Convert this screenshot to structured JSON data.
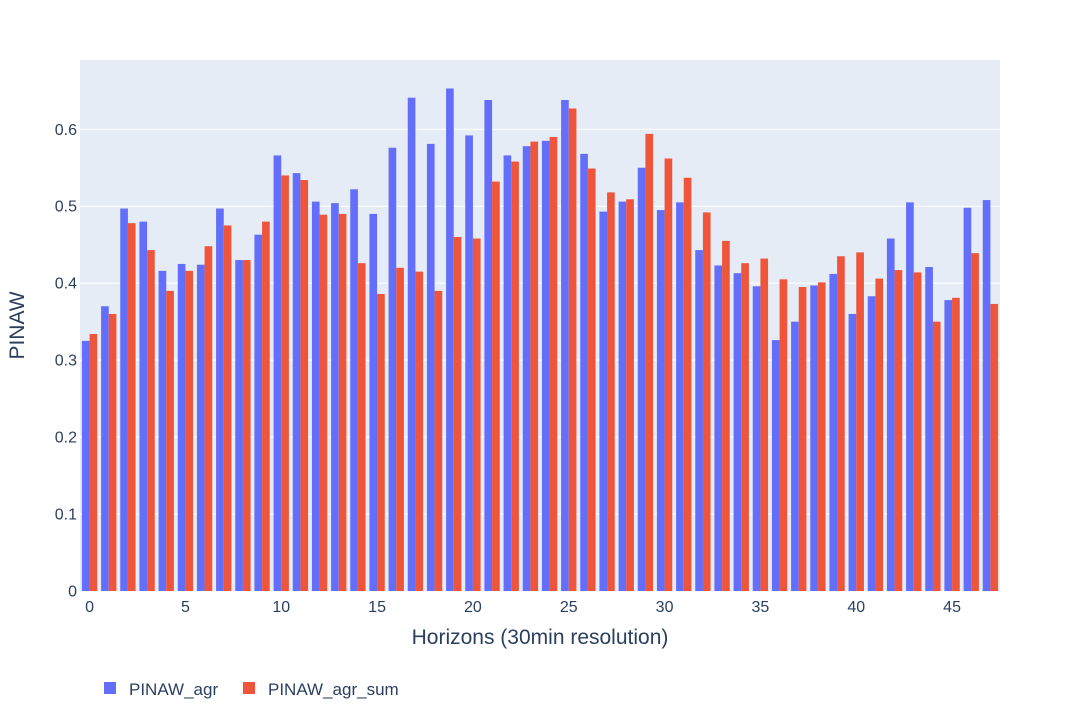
{
  "chart_data": {
    "type": "bar",
    "xlabel": "Horizons (30min resolution)",
    "ylabel": "PINAW",
    "ylim": [
      0,
      0.69
    ],
    "xlim": [
      -0.5,
      47.5
    ],
    "y_ticks": [
      0,
      0.1,
      0.2,
      0.3,
      0.4,
      0.5,
      0.6
    ],
    "x_ticks": [
      0,
      5,
      10,
      15,
      20,
      25,
      30,
      35,
      40,
      45
    ],
    "grid": true,
    "legend_position": "bottom-left",
    "x": [
      0,
      1,
      2,
      3,
      4,
      5,
      6,
      7,
      8,
      9,
      10,
      11,
      12,
      13,
      14,
      15,
      16,
      17,
      18,
      19,
      20,
      21,
      22,
      23,
      24,
      25,
      26,
      27,
      28,
      29,
      30,
      31,
      32,
      33,
      34,
      35,
      36,
      37,
      38,
      39,
      40,
      41,
      42,
      43,
      44,
      45,
      46,
      47
    ],
    "series": [
      {
        "name": "PINAW_agr",
        "color": "#636efa",
        "values": [
          0.325,
          0.37,
          0.497,
          0.48,
          0.416,
          0.425,
          0.424,
          0.497,
          0.43,
          0.463,
          0.566,
          0.543,
          0.506,
          0.504,
          0.522,
          0.49,
          0.576,
          0.641,
          0.581,
          0.653,
          0.592,
          0.638,
          0.566,
          0.578,
          0.585,
          0.638,
          0.568,
          0.493,
          0.506,
          0.55,
          0.495,
          0.505,
          0.443,
          0.423,
          0.413,
          0.396,
          0.326,
          0.35,
          0.397,
          0.412,
          0.36,
          0.383,
          0.458,
          0.505,
          0.421,
          0.378,
          0.498,
          0.508
        ]
      },
      {
        "name": "PINAW_agr_sum",
        "color": "#ef553b",
        "values": [
          0.334,
          0.36,
          0.478,
          0.443,
          0.39,
          0.416,
          0.448,
          0.475,
          0.43,
          0.48,
          0.54,
          0.534,
          0.489,
          0.49,
          0.426,
          0.386,
          0.42,
          0.415,
          0.39,
          0.46,
          0.458,
          0.532,
          0.558,
          0.584,
          0.59,
          0.627,
          0.549,
          0.518,
          0.509,
          0.594,
          0.562,
          0.537,
          0.492,
          0.455,
          0.426,
          0.432,
          0.405,
          0.395,
          0.401,
          0.435,
          0.44,
          0.406,
          0.417,
          0.414,
          0.35,
          0.381,
          0.439,
          0.373
        ]
      }
    ]
  }
}
